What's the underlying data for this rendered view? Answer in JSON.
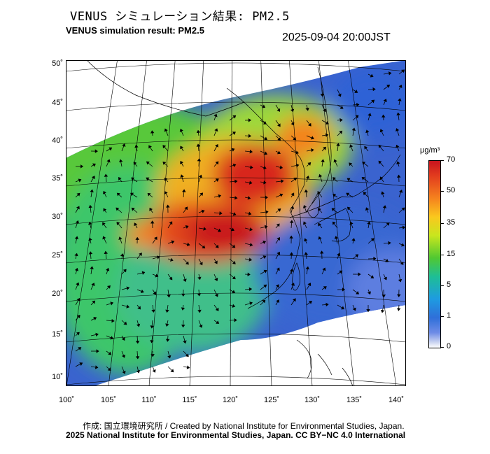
{
  "title": {
    "japanese": "VENUS シミュレーション結果: PM2.5",
    "english": "VENUS simulation result: PM2.5",
    "timestamp": "2025-09-04 20:00JST"
  },
  "map": {
    "projection": "conic",
    "layer": "PM2.5 concentration with wind vectors",
    "lat_labels": [
      "50˚",
      "45˚",
      "40˚",
      "35˚",
      "30˚",
      "25˚",
      "20˚",
      "15˚",
      "10˚"
    ],
    "lon_labels": [
      "100˚",
      "105˚",
      "110˚",
      "115˚",
      "120˚",
      "125˚",
      "130˚",
      "135˚",
      "140˚"
    ]
  },
  "colorbar": {
    "unit": "μg/m³",
    "levels": [
      "70",
      "50",
      "35",
      "15",
      "5",
      "1",
      "0"
    ],
    "colors": [
      "#c8141e",
      "#f5821e",
      "#fac81e",
      "#50c832",
      "#1ebe96",
      "#1e9be1",
      "#6e8ce6",
      "#ffffff"
    ]
  },
  "credits": {
    "line1": "作成: 国立環境研究所 / Created by National Institute for Environmental Studies, Japan.",
    "line2": "2025 National Institute for Environmental Studies, Japan. CC BY−NC 4.0 International"
  }
}
